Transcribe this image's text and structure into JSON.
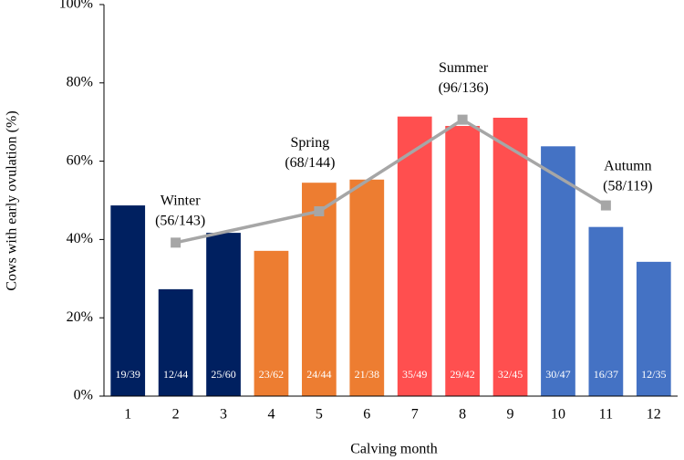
{
  "chart_data": {
    "type": "bar",
    "x_label": "Calving month",
    "y_label": "Cows with early ovulation (%)",
    "categories": [
      "1",
      "2",
      "3",
      "4",
      "5",
      "6",
      "7",
      "8",
      "9",
      "10",
      "11",
      "12"
    ],
    "values": [
      48.7,
      27.3,
      41.7,
      37.1,
      54.5,
      55.3,
      71.4,
      69.0,
      71.1,
      63.8,
      43.2,
      34.3
    ],
    "value_labels": [
      "19/39",
      "12/44",
      "25/60",
      "23/62",
      "24/44",
      "21/38",
      "35/49",
      "29/42",
      "32/45",
      "30/47",
      "16/37",
      "12/35"
    ],
    "colors": [
      "#002060",
      "#002060",
      "#002060",
      "#ed7d31",
      "#ed7d31",
      "#ed7d31",
      "#ff4f4f",
      "#ff4f4f",
      "#ff4f4f",
      "#4472c4",
      "#4472c4",
      "#4472c4"
    ],
    "line": {
      "x": [
        2,
        5,
        8,
        11
      ],
      "values": [
        39.2,
        47.2,
        70.6,
        48.7
      ],
      "color": "#a6a6a6",
      "labels": [
        "Winter",
        "Spring",
        "Summer",
        "Autumn"
      ],
      "value_labels": [
        "(56/143)",
        "(68/144)",
        "(96/136)",
        "(58/119)"
      ]
    },
    "ylim": [
      0,
      100
    ],
    "yticks": [
      {
        "value": 0,
        "label": "0%"
      },
      {
        "value": 20,
        "label": "20%"
      },
      {
        "value": 40,
        "label": "40%"
      },
      {
        "value": 60,
        "label": "60%"
      },
      {
        "value": 80,
        "label": "80%"
      },
      {
        "value": 100,
        "label": "100%"
      }
    ],
    "grid": false
  }
}
